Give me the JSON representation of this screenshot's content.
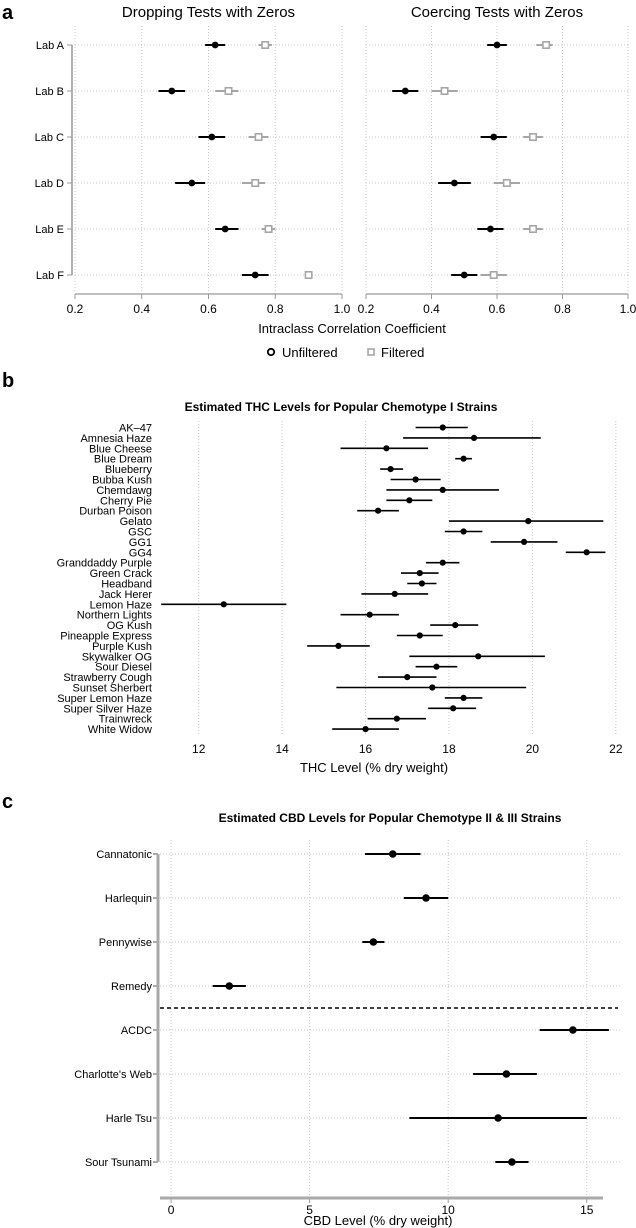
{
  "chart_data": [
    {
      "panel": "a",
      "type": "forest",
      "titles": [
        "Dropping Tests with Zeros",
        "Coercing Tests with Zeros"
      ],
      "xlabel": "Intraclass Correlation Coefficient",
      "xlim": [
        0.2,
        1.0
      ],
      "xticks": [
        "0.2",
        "0.4",
        "0.6",
        "0.8",
        "1.0"
      ],
      "categories": [
        "Lab A",
        "Lab B",
        "Lab C",
        "Lab D",
        "Lab E",
        "Lab F"
      ],
      "legend": {
        "position": "bottom",
        "items": [
          {
            "name": "Unfiltered",
            "color": "#000000",
            "marker": "circle"
          },
          {
            "name": "Filtered",
            "color": "#a6a6a6",
            "marker": "square"
          }
        ]
      },
      "subplots": [
        {
          "title": "Dropping Tests with Zeros",
          "series": [
            {
              "name": "Unfiltered",
              "values": [
                0.62,
                0.49,
                0.61,
                0.55,
                0.65,
                0.74
              ],
              "low": [
                0.59,
                0.45,
                0.57,
                0.5,
                0.62,
                0.7
              ],
              "high": [
                0.65,
                0.53,
                0.65,
                0.59,
                0.69,
                0.78
              ]
            },
            {
              "name": "Filtered",
              "values": [
                0.77,
                0.66,
                0.75,
                0.74,
                0.78,
                0.9
              ],
              "low": [
                0.75,
                0.62,
                0.72,
                0.7,
                0.76,
                0.89
              ],
              "high": [
                0.79,
                0.69,
                0.78,
                0.77,
                0.8,
                0.91
              ]
            }
          ]
        },
        {
          "title": "Coercing Tests with Zeros",
          "series": [
            {
              "name": "Unfiltered",
              "values": [
                0.6,
                0.32,
                0.59,
                0.47,
                0.58,
                0.5
              ],
              "low": [
                0.57,
                0.28,
                0.55,
                0.42,
                0.54,
                0.46
              ],
              "high": [
                0.63,
                0.36,
                0.63,
                0.52,
                0.62,
                0.54
              ]
            },
            {
              "name": "Filtered",
              "values": [
                0.75,
                0.44,
                0.71,
                0.63,
                0.71,
                0.59
              ],
              "low": [
                0.72,
                0.4,
                0.68,
                0.59,
                0.68,
                0.55
              ],
              "high": [
                0.77,
                0.48,
                0.74,
                0.67,
                0.74,
                0.63
              ]
            }
          ]
        }
      ]
    },
    {
      "panel": "b",
      "type": "forest",
      "title": "Estimated THC Levels for Popular Chemotype I Strains",
      "xlabel": "THC Level (% dry weight)",
      "xlim": [
        11.0,
        22.1
      ],
      "xticks": [
        "12",
        "14",
        "16",
        "18",
        "20",
        "22"
      ],
      "categories": [
        "AK–47",
        "Amnesia Haze",
        "Blue Cheese",
        "Blue Dream",
        "Blueberry",
        "Bubba Kush",
        "Chemdawg",
        "Cherry Pie",
        "Durban Poison",
        "Gelato",
        "GSC",
        "GG1",
        "GG4",
        "Granddaddy Purple",
        "Green Crack",
        "Headband",
        "Jack Herer",
        "Lemon Haze",
        "Northern Lights",
        "OG Kush",
        "Pineapple Express",
        "Purple Kush",
        "Skywalker OG",
        "Sour Diesel",
        "Strawberry Cough",
        "Sunset Sherbert",
        "Super Lemon Haze",
        "Super Silver Haze",
        "Trainwreck",
        "White Widow"
      ],
      "values": [
        17.85,
        18.6,
        16.5,
        18.35,
        16.6,
        17.2,
        17.85,
        17.05,
        16.3,
        19.9,
        18.35,
        19.8,
        21.3,
        17.85,
        17.3,
        17.35,
        16.7,
        12.6,
        16.1,
        18.15,
        17.3,
        15.35,
        18.7,
        17.7,
        17.0,
        17.6,
        18.35,
        18.1,
        16.75,
        16.0
      ],
      "low": [
        17.2,
        16.9,
        15.4,
        18.15,
        16.35,
        16.6,
        16.5,
        16.5,
        15.8,
        18.0,
        17.9,
        19.0,
        20.8,
        17.45,
        16.85,
        17.0,
        15.9,
        11.1,
        15.4,
        17.55,
        16.75,
        14.6,
        17.05,
        17.2,
        16.3,
        15.3,
        17.9,
        17.5,
        16.05,
        15.2
      ],
      "high": [
        18.45,
        20.2,
        17.5,
        18.55,
        16.9,
        17.8,
        19.2,
        17.6,
        16.8,
        21.7,
        18.8,
        20.6,
        21.75,
        18.25,
        17.75,
        17.7,
        17.5,
        14.1,
        16.8,
        18.7,
        17.85,
        16.1,
        20.3,
        18.2,
        17.7,
        19.85,
        18.8,
        18.65,
        17.45,
        16.8
      ]
    },
    {
      "panel": "c",
      "type": "forest",
      "title": "Estimated CBD Levels for Popular Chemotype II & III Strains",
      "xlabel": "CBD Level (% dry weight)",
      "xlim": [
        -0.4,
        16.2
      ],
      "xticks": [
        "0",
        "5",
        "10",
        "15"
      ],
      "categories": [
        "Cannatonic",
        "Harlequin",
        "Pennywise",
        "Remedy",
        "ACDC",
        "Charlotte's Web",
        "Harle Tsu",
        "Sour Tsunami"
      ],
      "values": [
        8.0,
        9.2,
        7.3,
        2.1,
        14.5,
        12.1,
        11.8,
        12.3
      ],
      "low": [
        7.0,
        8.4,
        6.9,
        1.5,
        13.3,
        10.9,
        8.6,
        11.7
      ],
      "high": [
        9.0,
        10.0,
        7.7,
        2.7,
        15.8,
        13.2,
        15.0,
        12.9
      ],
      "separator_after": "Remedy"
    }
  ],
  "labels": {
    "panel_a": "a",
    "panel_b": "b",
    "panel_c": "c"
  }
}
